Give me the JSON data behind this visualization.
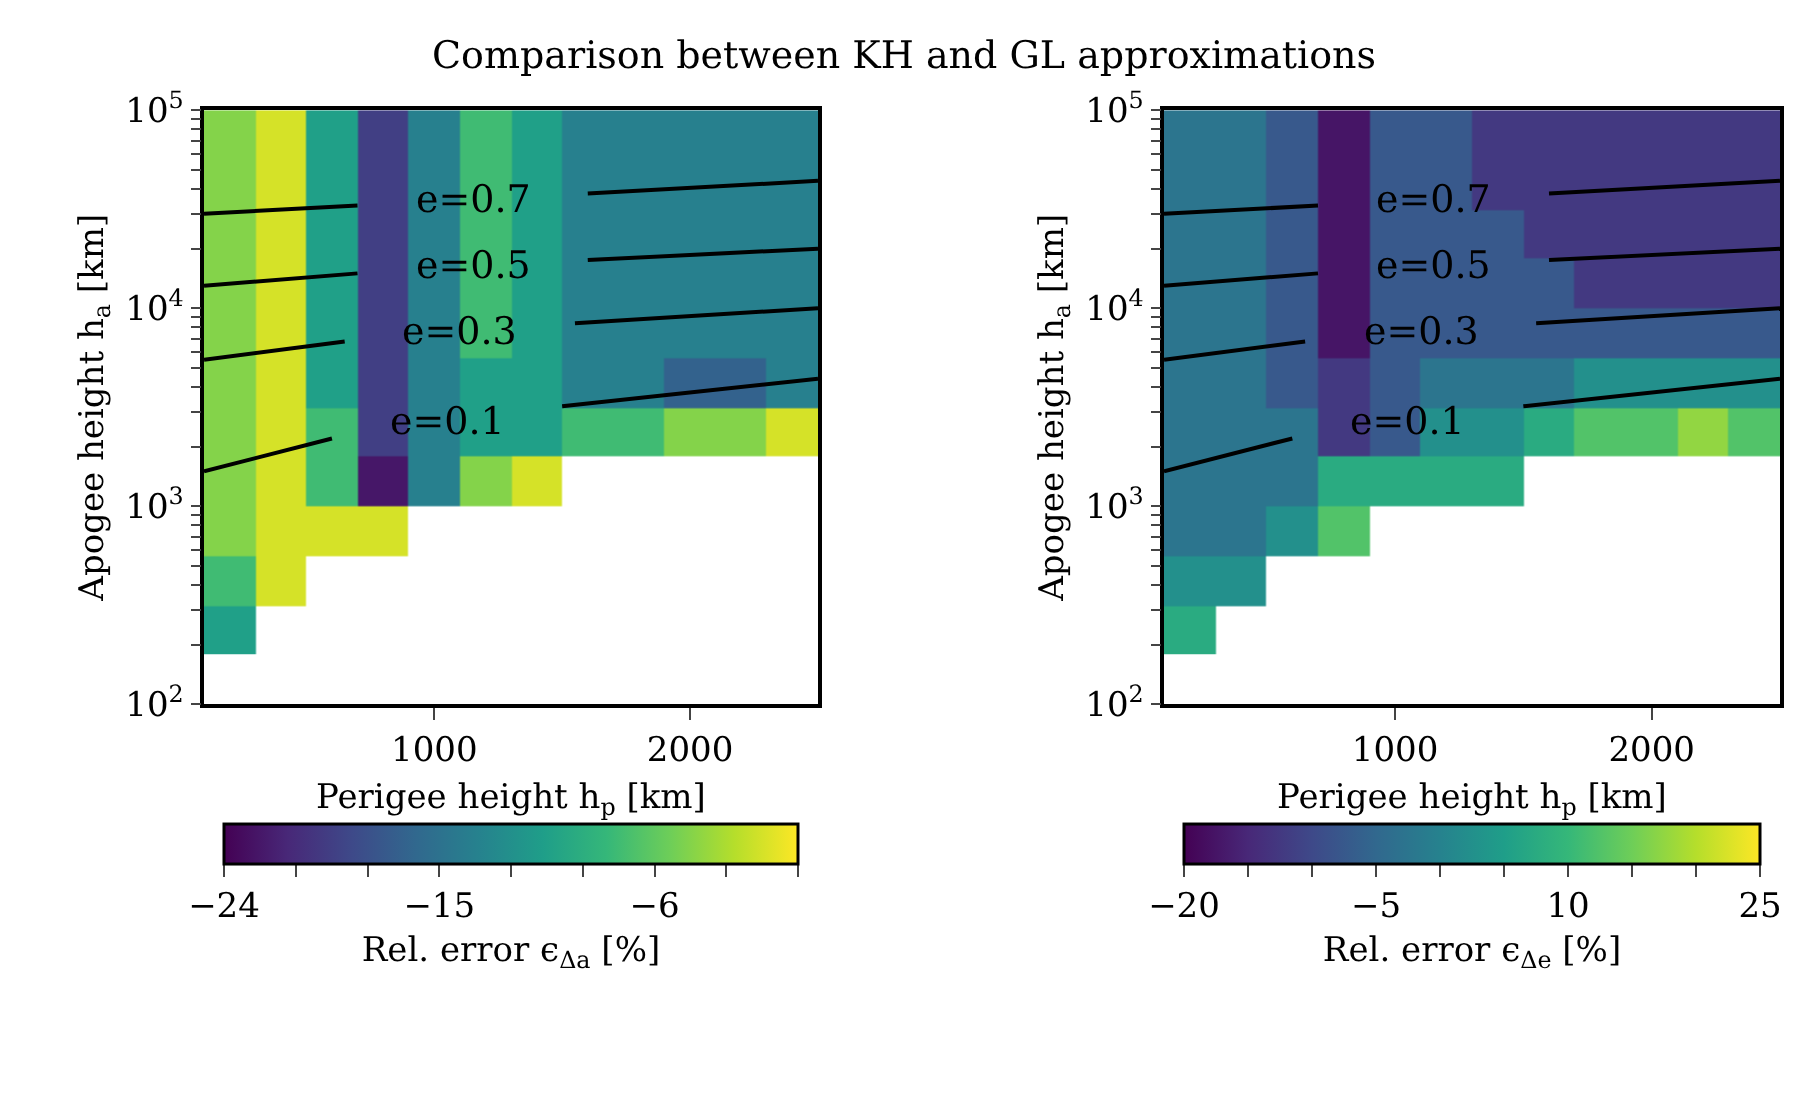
{
  "chart_data": [
    {
      "type": "heatmap",
      "title": "Comparison between KH and GL approximations",
      "xlabel": "Perigee height h$_{p}$ [km]",
      "ylabel": "Apogee height h$_{a}$ [km]",
      "clabel": "Rel. error ϵ$_{Δa}$ [%]",
      "x": [
        200,
        400,
        600,
        800,
        1000,
        1200,
        1400,
        1600,
        1800,
        2000,
        2200,
        2400
      ],
      "y": [
        237,
        422,
        750,
        1334,
        2371,
        4217,
        7499,
        13335,
        23714,
        42170,
        74989
      ],
      "cells": [
        [
          -10.5,
          null,
          null,
          null,
          null,
          null,
          null,
          null,
          null,
          null,
          null,
          null
        ],
        [
          -7.5,
          -1.5,
          null,
          null,
          null,
          null,
          null,
          null,
          null,
          null,
          null,
          null
        ],
        [
          -4.5,
          -1.5,
          -1.5,
          -1.5,
          null,
          null,
          null,
          null,
          null,
          null,
          null,
          null
        ],
        [
          -4.5,
          -1.5,
          -7.5,
          -22.5,
          -13.5,
          -4.5,
          -1.5,
          null,
          null,
          null,
          null,
          null
        ],
        [
          -4.5,
          -1.5,
          -7.5,
          -19.5,
          -13.5,
          -10.5,
          -10.5,
          -7.5,
          -7.5,
          -4.5,
          -4.5,
          -1.5
        ],
        [
          -4.5,
          -1.5,
          -10.5,
          -19.5,
          -13.5,
          -10.5,
          -10.5,
          -13.5,
          -13.5,
          -16.5,
          -16.5,
          -13.5
        ],
        [
          -4.5,
          -1.5,
          -10.5,
          -19.5,
          -13.5,
          -7.5,
          -10.5,
          -13.5,
          -13.5,
          -13.5,
          -13.5,
          -13.5
        ],
        [
          -4.5,
          -1.5,
          -10.5,
          -19.5,
          -13.5,
          -7.5,
          -10.5,
          -13.5,
          -13.5,
          -13.5,
          -13.5,
          -13.5
        ],
        [
          -4.5,
          -1.5,
          -10.5,
          -19.5,
          -13.5,
          -7.5,
          -10.5,
          -13.5,
          -13.5,
          -13.5,
          -13.5,
          -13.5
        ],
        [
          -4.5,
          -1.5,
          -10.5,
          -19.5,
          -13.5,
          -7.5,
          -10.5,
          -13.5,
          -13.5,
          -13.5,
          -13.5,
          -13.5
        ],
        [
          -4.5,
          -1.5,
          -10.5,
          -19.5,
          -13.5,
          -7.5,
          -10.5,
          -13.5,
          -13.5,
          -13.5,
          -13.5,
          -13.5
        ]
      ],
      "clim": [
        -24,
        0
      ],
      "cticks": [
        -24,
        {
          "value": -21,
          "label": null
        },
        {
          "value": -18,
          "label": null
        },
        -15,
        {
          "value": -12,
          "label": null
        },
        {
          "value": -9,
          "label": null
        },
        -6,
        {
          "value": -3,
          "label": null
        },
        {
          "value": 0,
          "label": null
        }
      ],
      "series": [
        {
          "type": "line",
          "name": "e=0.7",
          "color": "#000000",
          "x": [
            100,
            700,
            1150,
            1600,
            2500
          ],
          "values": [
            30000,
            33000,
            null,
            38000,
            44000
          ]
        },
        {
          "type": "line",
          "name": "e=0.5",
          "color": "#000000",
          "x": [
            100,
            700,
            1150,
            1600,
            2500
          ],
          "values": [
            13000,
            15000,
            null,
            17500,
            20000
          ]
        },
        {
          "type": "line",
          "name": "e=0.3",
          "color": "#000000",
          "x": [
            100,
            650,
            1100,
            1550,
            2500
          ],
          "values": [
            5500,
            6800,
            null,
            8400,
            10000
          ]
        },
        {
          "type": "line",
          "name": "e=0.1",
          "color": "#000000",
          "x": [
            100,
            600,
            1050,
            1500,
            2500
          ],
          "values": [
            1500,
            2200,
            null,
            3200,
            4400
          ]
        }
      ],
      "xlim": [
        100,
        2500
      ],
      "ylim": [
        100,
        100000
      ],
      "log": true,
      "xticks": [
        1000,
        2000
      ],
      "yticks": [
        {
          "value": 100,
          "label": "10$^{2}$"
        },
        {
          "value": 200,
          "label": null
        },
        {
          "value": 300,
          "label": null
        },
        {
          "value": 400,
          "label": null
        },
        {
          "value": 500,
          "label": null
        },
        {
          "value": 600,
          "label": null
        },
        {
          "value": 700,
          "label": null
        },
        {
          "value": 800,
          "label": null
        },
        {
          "value": 900,
          "label": null
        },
        {
          "value": 1000,
          "label": "10$^{3}$"
        },
        {
          "value": 2000,
          "label": null
        },
        {
          "value": 3000,
          "label": null
        },
        {
          "value": 4000,
          "label": null
        },
        {
          "value": 5000,
          "label": null
        },
        {
          "value": 6000,
          "label": null
        },
        {
          "value": 7000,
          "label": null
        },
        {
          "value": 8000,
          "label": null
        },
        {
          "value": 9000,
          "label": null
        },
        {
          "value": 10000,
          "label": "10$^{4}$"
        },
        {
          "value": 20000,
          "label": null
        },
        {
          "value": 30000,
          "label": null
        },
        {
          "value": 40000,
          "label": null
        },
        {
          "value": 50000,
          "label": null
        },
        {
          "value": 60000,
          "label": null
        },
        {
          "value": 70000,
          "label": null
        },
        {
          "value": 80000,
          "label": null
        },
        {
          "value": 90000,
          "label": null
        },
        {
          "value": 100000,
          "label": "10$^{5}$"
        }
      ]
    },
    {
      "type": "heatmap",
      "xlabel": "Perigee height h$_{p}$ [km]",
      "ylabel": "Apogee height h$_{a}$ [km]",
      "clabel": "Rel. error ϵ$_{Δe}$ [%]",
      "x": [
        200,
        400,
        600,
        800,
        1000,
        1200,
        1400,
        1600,
        1800,
        2000,
        2200,
        2400
      ],
      "y": [
        237,
        422,
        750,
        1334,
        2371,
        4217,
        7499,
        13335,
        23714,
        42170,
        74989
      ],
      "cells": [
        [
          7.5,
          null,
          null,
          null,
          null,
          null,
          null,
          null,
          null,
          null,
          null,
          null
        ],
        [
          2.5,
          2.5,
          null,
          null,
          null,
          null,
          null,
          null,
          null,
          null,
          null,
          null
        ],
        [
          -2.5,
          -2.5,
          2.5,
          12.5,
          null,
          null,
          null,
          null,
          null,
          null,
          null,
          null
        ],
        [
          -2.5,
          -2.5,
          -2.5,
          7.5,
          7.5,
          7.5,
          7.5,
          null,
          null,
          null,
          null,
          null
        ],
        [
          -2.5,
          -2.5,
          -2.5,
          -12.5,
          -7.5,
          2.5,
          2.5,
          7.5,
          12.5,
          12.5,
          17.5,
          12.5
        ],
        [
          -2.5,
          -2.5,
          -7.5,
          -12.5,
          -7.5,
          -2.5,
          -2.5,
          -2.5,
          2.5,
          2.5,
          2.5,
          2.5
        ],
        [
          -2.5,
          -2.5,
          -7.5,
          -17.5,
          -7.5,
          -7.5,
          -7.5,
          -7.5,
          -7.5,
          -7.5,
          -7.5,
          -7.5
        ],
        [
          -2.5,
          -2.5,
          -7.5,
          -17.5,
          -7.5,
          -7.5,
          -7.5,
          -7.5,
          -12.5,
          -12.5,
          -12.5,
          -12.5
        ],
        [
          -2.5,
          -2.5,
          -7.5,
          -17.5,
          -7.5,
          -7.5,
          -7.5,
          -12.5,
          -12.5,
          -12.5,
          -12.5,
          -12.5
        ],
        [
          -2.5,
          -2.5,
          -7.5,
          -17.5,
          -7.5,
          -7.5,
          -12.5,
          -12.5,
          -12.5,
          -12.5,
          -12.5,
          -12.5
        ],
        [
          -2.5,
          -2.5,
          -7.5,
          -17.5,
          -7.5,
          -7.5,
          -12.5,
          -12.5,
          -12.5,
          -12.5,
          -12.5,
          -12.5
        ]
      ],
      "clim": [
        -20,
        25
      ],
      "cticks": [
        -20,
        {
          "value": -15,
          "label": null
        },
        {
          "value": -10,
          "label": null
        },
        -5,
        {
          "value": 0,
          "label": null
        },
        {
          "value": 5,
          "label": null
        },
        10,
        {
          "value": 15,
          "label": null
        },
        {
          "value": 20,
          "label": null
        },
        25
      ],
      "series": [
        {
          "type": "line",
          "name": "e=0.7",
          "color": "#000000",
          "x": [
            100,
            700,
            1150,
            1600,
            2500
          ],
          "values": [
            30000,
            33000,
            null,
            38000,
            44000
          ]
        },
        {
          "type": "line",
          "name": "e=0.5",
          "color": "#000000",
          "x": [
            100,
            700,
            1150,
            1600,
            2500
          ],
          "values": [
            13000,
            15000,
            null,
            17500,
            20000
          ]
        },
        {
          "type": "line",
          "name": "e=0.3",
          "color": "#000000",
          "x": [
            100,
            650,
            1100,
            1550,
            2500
          ],
          "values": [
            5500,
            6800,
            null,
            8400,
            10000
          ]
        },
        {
          "type": "line",
          "name": "e=0.1",
          "color": "#000000",
          "x": [
            100,
            600,
            1050,
            1500,
            2500
          ],
          "values": [
            1500,
            2200,
            null,
            3200,
            4400
          ]
        }
      ],
      "xlim": [
        100,
        2500
      ],
      "ylim": [
        100,
        100000
      ],
      "log": true,
      "xticks": [
        1000,
        2000
      ],
      "yticks": [
        {
          "value": 100,
          "label": "10$^{2}$"
        },
        {
          "value": 200,
          "label": null
        },
        {
          "value": 300,
          "label": null
        },
        {
          "value": 400,
          "label": null
        },
        {
          "value": 500,
          "label": null
        },
        {
          "value": 600,
          "label": null
        },
        {
          "value": 700,
          "label": null
        },
        {
          "value": 800,
          "label": null
        },
        {
          "value": 900,
          "label": null
        },
        {
          "value": 1000,
          "label": "10$^{3}$"
        },
        {
          "value": 2000,
          "label": null
        },
        {
          "value": 3000,
          "label": null
        },
        {
          "value": 4000,
          "label": null
        },
        {
          "value": 5000,
          "label": null
        },
        {
          "value": 6000,
          "label": null
        },
        {
          "value": 7000,
          "label": null
        },
        {
          "value": 8000,
          "label": null
        },
        {
          "value": 9000,
          "label": null
        },
        {
          "value": 10000,
          "label": "10$^{4}$"
        },
        {
          "value": 20000,
          "label": null
        },
        {
          "value": 30000,
          "label": null
        },
        {
          "value": 40000,
          "label": null
        },
        {
          "value": 50000,
          "label": null
        },
        {
          "value": 60000,
          "label": null
        },
        {
          "value": 70000,
          "label": null
        },
        {
          "value": 80000,
          "label": null
        },
        {
          "value": 90000,
          "label": null
        },
        {
          "value": 100000,
          "label": "10$^{5}$"
        }
      ]
    }
  ]
}
